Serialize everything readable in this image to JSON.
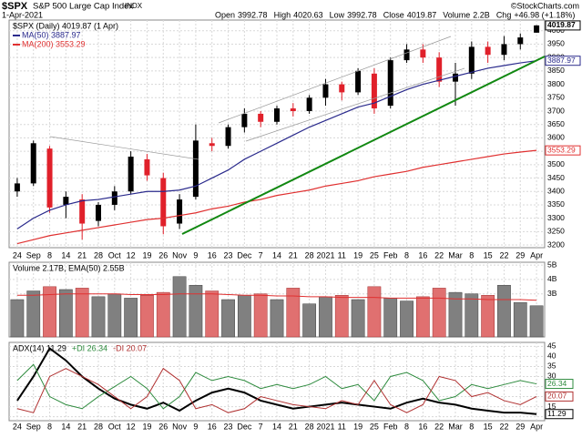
{
  "header": {
    "symbol": "$SPX",
    "name": "S&P 500 Large Cap Index",
    "exchange": "INDX",
    "date": "1-Apr-2021",
    "watermark": "©StockCharts.com",
    "stats": [
      {
        "label": "Open",
        "value": "3992.78"
      },
      {
        "label": "High",
        "value": "4020.63"
      },
      {
        "label": "Low",
        "value": "3992.78"
      },
      {
        "label": "Close",
        "value": "4019.87"
      },
      {
        "label": "Volume",
        "value": "2.2B"
      },
      {
        "label": "Chg",
        "value": "+46.98 (+1.18%)"
      }
    ]
  },
  "chart_data": [
    {
      "type": "candlestick",
      "legend": "$SPX (Daily) 4019.87 (1 Apr)",
      "categories": [
        "24",
        "Sep",
        "8",
        "14",
        "21",
        "28",
        "Oct",
        "12",
        "19",
        "26",
        "Nov",
        "9",
        "16",
        "23",
        "Dec",
        "7",
        "14",
        "21",
        "28",
        "2021",
        "11",
        "19",
        "25",
        "Feb",
        "8",
        "16",
        "22",
        "Mar",
        "8",
        "15",
        "22",
        "29",
        "Apr"
      ],
      "open": [
        3400,
        3430,
        3560,
        3350,
        3370,
        3290,
        3350,
        3400,
        3520,
        3450,
        3280,
        3380,
        3580,
        3570,
        3640,
        3690,
        3660,
        3710,
        3700,
        3750,
        3800,
        3770,
        3840,
        3720,
        3890,
        3930,
        3900,
        3810,
        3840,
        3940,
        3910,
        3950,
        3992.78
      ],
      "high": [
        3450,
        3590,
        3570,
        3400,
        3390,
        3360,
        3420,
        3550,
        3540,
        3470,
        3390,
        3650,
        3600,
        3650,
        3710,
        3700,
        3720,
        3730,
        3760,
        3820,
        3810,
        3860,
        3860,
        3900,
        3950,
        3950,
        3920,
        3880,
        3960,
        3960,
        3980,
        3990,
        4020.63
      ],
      "low": [
        3380,
        3420,
        3320,
        3300,
        3220,
        3270,
        3330,
        3390,
        3440,
        3240,
        3260,
        3370,
        3550,
        3560,
        3620,
        3640,
        3650,
        3680,
        3690,
        3720,
        3740,
        3760,
        3690,
        3710,
        3880,
        3880,
        3790,
        3720,
        3820,
        3880,
        3890,
        3930,
        3992.78
      ],
      "close": [
        3430,
        3580,
        3340,
        3380,
        3280,
        3350,
        3400,
        3530,
        3460,
        3270,
        3370,
        3590,
        3570,
        3640,
        3690,
        3660,
        3710,
        3700,
        3750,
        3800,
        3770,
        3850,
        3710,
        3890,
        3930,
        3900,
        3810,
        3840,
        3940,
        3910,
        3950,
        3975,
        4019.87
      ],
      "up_color": "#000000",
      "down_color": "#e0202a",
      "series": [
        {
          "name": "MA(50) 3887.97",
          "color": "#2a2a8c",
          "values": [
            3260,
            3300,
            3330,
            3350,
            3365,
            3370,
            3380,
            3390,
            3400,
            3400,
            3405,
            3420,
            3450,
            3480,
            3520,
            3550,
            3580,
            3610,
            3640,
            3665,
            3690,
            3715,
            3730,
            3755,
            3780,
            3800,
            3815,
            3830,
            3845,
            3860,
            3870,
            3880,
            3887.97
          ]
        },
        {
          "name": "MA(200) 3553.29",
          "color": "#e03030",
          "values": [
            3205,
            3220,
            3235,
            3245,
            3255,
            3265,
            3275,
            3285,
            3295,
            3300,
            3310,
            3320,
            3335,
            3345,
            3360,
            3370,
            3385,
            3395,
            3405,
            3420,
            3430,
            3440,
            3455,
            3465,
            3475,
            3490,
            3500,
            3510,
            3520,
            3530,
            3540,
            3547,
            3553.29
          ]
        }
      ],
      "ylim": [
        3190,
        4040
      ],
      "yticks": [
        3200,
        3250,
        3300,
        3350,
        3400,
        3450,
        3500,
        3550,
        3600,
        3650,
        3700,
        3750,
        3800,
        3850,
        3900,
        3950,
        4000
      ],
      "grid": true
    },
    {
      "type": "bar",
      "legend": "Volume 2.17B, EMA(50) 2.55B",
      "values": [
        2.6,
        3.2,
        3.5,
        3.3,
        3.4,
        2.8,
        3.0,
        2.7,
        2.9,
        3.1,
        4.2,
        3.6,
        3.2,
        2.6,
        2.9,
        3.0,
        2.6,
        3.4,
        2.3,
        2.8,
        2.9,
        2.6,
        3.5,
        2.7,
        2.5,
        2.8,
        3.4,
        3.1,
        3.0,
        2.9,
        3.6,
        2.4,
        2.17
      ],
      "series": [
        {
          "color": "#e03030",
          "values": [
            2.9,
            2.9,
            2.95,
            3.0,
            3.0,
            3.0,
            3.0,
            2.95,
            2.95,
            2.95,
            3.0,
            3.0,
            3.0,
            2.95,
            2.9,
            2.9,
            2.85,
            2.85,
            2.8,
            2.8,
            2.75,
            2.75,
            2.75,
            2.7,
            2.7,
            2.7,
            2.7,
            2.65,
            2.65,
            2.6,
            2.6,
            2.6,
            2.55
          ]
        }
      ],
      "ylim": [
        0,
        5.2
      ],
      "yticks": [
        {
          "value": 3,
          "label": "3B"
        },
        {
          "value": 4,
          "label": "4B"
        },
        {
          "value": 5,
          "label": "5B"
        }
      ],
      "grid": true
    },
    {
      "type": "line",
      "series": [
        {
          "name": "ADX(14) 11.29",
          "color": "#000000",
          "values": [
            18,
            30,
            44,
            38,
            30,
            24,
            19,
            16,
            14,
            17,
            13,
            18,
            22,
            24,
            22,
            18,
            16,
            14,
            15,
            16,
            17,
            16,
            15,
            14,
            17,
            19,
            17,
            16,
            14,
            13,
            12,
            12,
            11.29
          ]
        },
        {
          "name": "+DI 26.34",
          "color": "#2e8b3e",
          "values": [
            28,
            36,
            20,
            16,
            14,
            20,
            25,
            30,
            24,
            14,
            20,
            32,
            28,
            30,
            28,
            24,
            26,
            24,
            26,
            30,
            24,
            26,
            18,
            30,
            32,
            28,
            18,
            20,
            26,
            24,
            26,
            28,
            26.34
          ]
        },
        {
          "name": "-DI 20.07",
          "color": "#b03030",
          "values": [
            14,
            12,
            30,
            34,
            30,
            26,
            20,
            14,
            20,
            34,
            28,
            14,
            16,
            12,
            14,
            20,
            18,
            16,
            15,
            14,
            18,
            16,
            28,
            16,
            12,
            16,
            30,
            28,
            20,
            22,
            18,
            16,
            20.07
          ]
        }
      ],
      "ylim": [
        8,
        47
      ],
      "yticks": [
        10,
        15,
        20,
        25,
        30,
        35,
        40,
        45
      ],
      "grid": true
    }
  ]
}
